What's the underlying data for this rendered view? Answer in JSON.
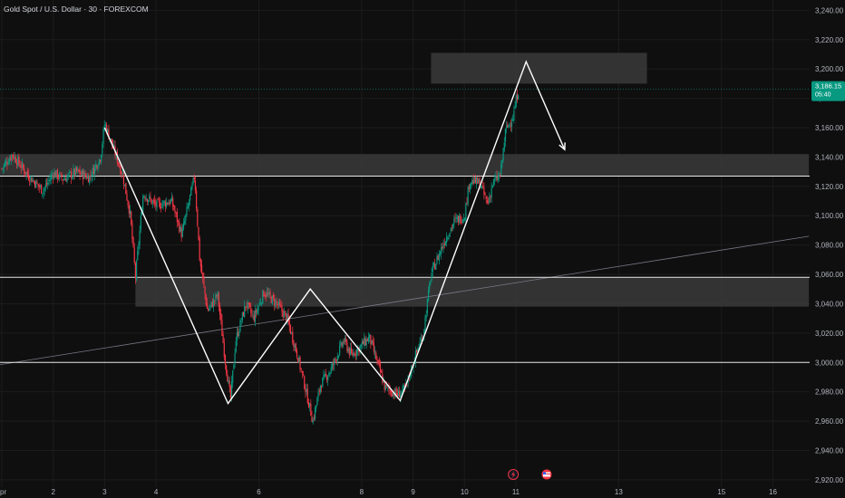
{
  "header": {
    "title": "Gold Spot / U.S. Dollar · 30 · FOREXCOM"
  },
  "price_tag": {
    "price": "3,186.15",
    "countdown": "05:40",
    "color": "#089981"
  },
  "colors": {
    "background": "#0f0f0f",
    "up": "#089981",
    "down": "#f23645",
    "lines": "#ffffff",
    "zone": "#3a3a3a",
    "grid": "#1c1c1c"
  },
  "events": [
    {
      "icon": "lightning-icon",
      "x": 10.95
    },
    {
      "icon": "us-flag-icon",
      "x": 11.6
    }
  ],
  "chart_data": {
    "type": "candlestick",
    "x_ticks": [
      {
        "x": 1.0,
        "label": "pr"
      },
      {
        "x": 2,
        "label": "2"
      },
      {
        "x": 3,
        "label": "3"
      },
      {
        "x": 4,
        "label": "4"
      },
      {
        "x": 6,
        "label": "6"
      },
      {
        "x": 8,
        "label": "8"
      },
      {
        "x": 9,
        "label": "9"
      },
      {
        "x": 10,
        "label": "10"
      },
      {
        "x": 11,
        "label": "11"
      },
      {
        "x": 13,
        "label": "13"
      },
      {
        "x": 15,
        "label": "15"
      },
      {
        "x": 16,
        "label": "16"
      }
    ],
    "y_ticks": [
      "2,920.00",
      "2,940.00",
      "2,960.00",
      "2,980.00",
      "3,000.00",
      "3,020.00",
      "3,040.00",
      "3,060.00",
      "3,080.00",
      "3,100.00",
      "3,120.00",
      "3,140.00",
      "3,160.00",
      "3,180.00",
      "3,200.00",
      "3,220.00",
      "3,240.00"
    ],
    "ylim": [
      2915,
      3247
    ],
    "current_price": 3186.15,
    "path": [
      [
        1.0,
        3132
      ],
      [
        1.2,
        3142
      ],
      [
        1.5,
        3128
      ],
      [
        1.8,
        3117
      ],
      [
        2.0,
        3129
      ],
      [
        2.2,
        3125
      ],
      [
        2.45,
        3130
      ],
      [
        2.7,
        3126
      ],
      [
        2.92,
        3140
      ],
      [
        3.0,
        3163
      ],
      [
        3.2,
        3143
      ],
      [
        3.35,
        3128
      ],
      [
        3.5,
        3100
      ],
      [
        3.6,
        3058
      ],
      [
        3.75,
        3115
      ],
      [
        4.0,
        3107
      ],
      [
        4.3,
        3110
      ],
      [
        4.5,
        3087
      ],
      [
        4.75,
        3127
      ],
      [
        4.85,
        3070
      ],
      [
        5.0,
        3035
      ],
      [
        5.2,
        3046
      ],
      [
        5.35,
        3000
      ],
      [
        5.45,
        2975
      ],
      [
        5.55,
        3015
      ],
      [
        5.75,
        3040
      ],
      [
        5.9,
        3030
      ],
      [
        6.1,
        3048
      ],
      [
        6.35,
        3040
      ],
      [
        6.55,
        3030
      ],
      [
        6.75,
        3005
      ],
      [
        6.9,
        2983
      ],
      [
        7.05,
        2960
      ],
      [
        7.2,
        2985
      ],
      [
        7.4,
        2995
      ],
      [
        7.65,
        3015
      ],
      [
        7.8,
        3005
      ],
      [
        7.95,
        3010
      ],
      [
        8.15,
        3017
      ],
      [
        8.35,
        2995
      ],
      [
        8.45,
        2983
      ],
      [
        8.7,
        2978
      ],
      [
        8.85,
        2982
      ],
      [
        9.0,
        3000
      ],
      [
        9.2,
        3020
      ],
      [
        9.35,
        3060
      ],
      [
        9.6,
        3082
      ],
      [
        9.8,
        3096
      ],
      [
        10.0,
        3100
      ],
      [
        10.1,
        3124
      ],
      [
        10.3,
        3122
      ],
      [
        10.45,
        3108
      ],
      [
        10.55,
        3122
      ],
      [
        10.7,
        3128
      ],
      [
        10.8,
        3158
      ],
      [
        10.95,
        3168
      ],
      [
        11.0,
        3178
      ],
      [
        11.05,
        3186
      ]
    ],
    "horizontal_lines": [
      3127,
      3058,
      3000
    ],
    "zones": [
      {
        "x1": 0.7,
        "x2": 16.7,
        "y1": 3127,
        "y2": 3142
      },
      {
        "x1": 3.6,
        "x2": 16.7,
        "y1": 3038,
        "y2": 3058
      },
      {
        "x1": 9.35,
        "x2": 13.55,
        "y1": 3190,
        "y2": 3211
      }
    ],
    "trendline": {
      "x1": 0.7,
      "y1": 2997,
      "x2": 16.7,
      "y2": 3086
    },
    "pattern_path": [
      [
        3.0,
        3160
      ],
      [
        5.4,
        2972
      ],
      [
        7.0,
        3050
      ],
      [
        8.75,
        2974
      ],
      [
        11.2,
        3205
      ],
      [
        11.95,
        3145
      ]
    ]
  }
}
